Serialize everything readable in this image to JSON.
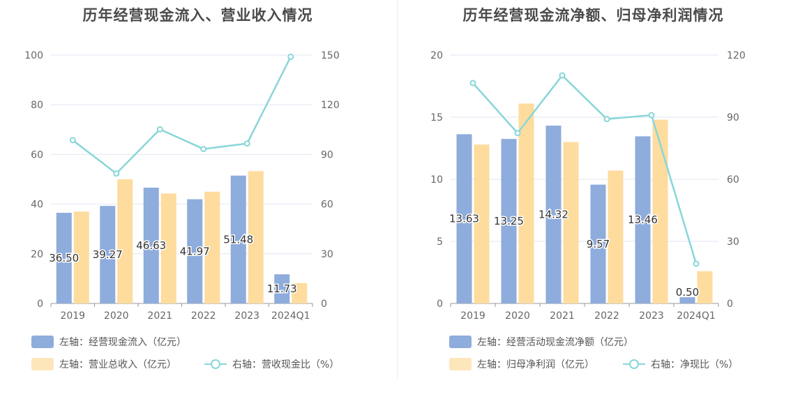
{
  "chart_data": [
    {
      "type": "bar",
      "title": "历年经营现金流入、营业收入情况",
      "categories": [
        "2019",
        "2020",
        "2021",
        "2022",
        "2023",
        "2024Q1"
      ],
      "y_left_ticks": [
        "0",
        "20",
        "40",
        "60",
        "80",
        "100"
      ],
      "y_right_ticks": [
        "0",
        "30",
        "60",
        "90",
        "120",
        "150"
      ],
      "ylim_left": [
        0,
        100
      ],
      "ylim_right": [
        0,
        150
      ],
      "grid": true,
      "legend_position": "bottom",
      "series": [
        {
          "name": "左轴：经营现金流入（亿元）",
          "type": "bar",
          "axis": "left",
          "color": "#8eacdc",
          "values": [
            36.5,
            39.27,
            46.63,
            41.97,
            51.48,
            11.73
          ],
          "labels": [
            "36.50",
            "39.27",
            "46.63",
            "41.97",
            "51.48",
            "11.73"
          ]
        },
        {
          "name": "左轴：营业总收入（亿元）",
          "type": "bar",
          "axis": "left",
          "color": "#fedc9e",
          "values": [
            37.0,
            50.0,
            44.3,
            45.0,
            53.3,
            8.2
          ]
        },
        {
          "name": "右轴：营收现金比（%）",
          "type": "line",
          "axis": "right",
          "color": "#88d6d8",
          "values": [
            98.6,
            78.5,
            105.2,
            93.3,
            96.6,
            149.0
          ]
        }
      ]
    },
    {
      "type": "bar",
      "title": "历年经营现金流净额、归母净利润情况",
      "categories": [
        "2019",
        "2020",
        "2021",
        "2022",
        "2023",
        "2024Q1"
      ],
      "y_left_ticks": [
        "0",
        "5",
        "10",
        "15",
        "20"
      ],
      "y_right_ticks": [
        "0",
        "30",
        "60",
        "90",
        "120"
      ],
      "ylim_left": [
        0,
        20
      ],
      "ylim_right": [
        0,
        120
      ],
      "grid": true,
      "legend_position": "bottom",
      "series": [
        {
          "name": "左轴：经营活动现金流净额（亿元）",
          "type": "bar",
          "axis": "left",
          "color": "#8eacdc",
          "values": [
            13.63,
            13.25,
            14.32,
            9.57,
            13.46,
            0.5
          ],
          "labels": [
            "13.63",
            "13.25",
            "14.32",
            "9.57",
            "13.46",
            "0.50"
          ]
        },
        {
          "name": "左轴：归母净利润（亿元）",
          "type": "bar",
          "axis": "left",
          "color": "#fedc9e",
          "values": [
            12.8,
            16.1,
            13.0,
            10.7,
            14.8,
            2.6
          ]
        },
        {
          "name": "右轴：净现比（%）",
          "type": "line",
          "axis": "right",
          "color": "#88d6d8",
          "values": [
            106.5,
            82.3,
            110.2,
            89.1,
            91.0,
            19.2
          ]
        }
      ]
    }
  ]
}
